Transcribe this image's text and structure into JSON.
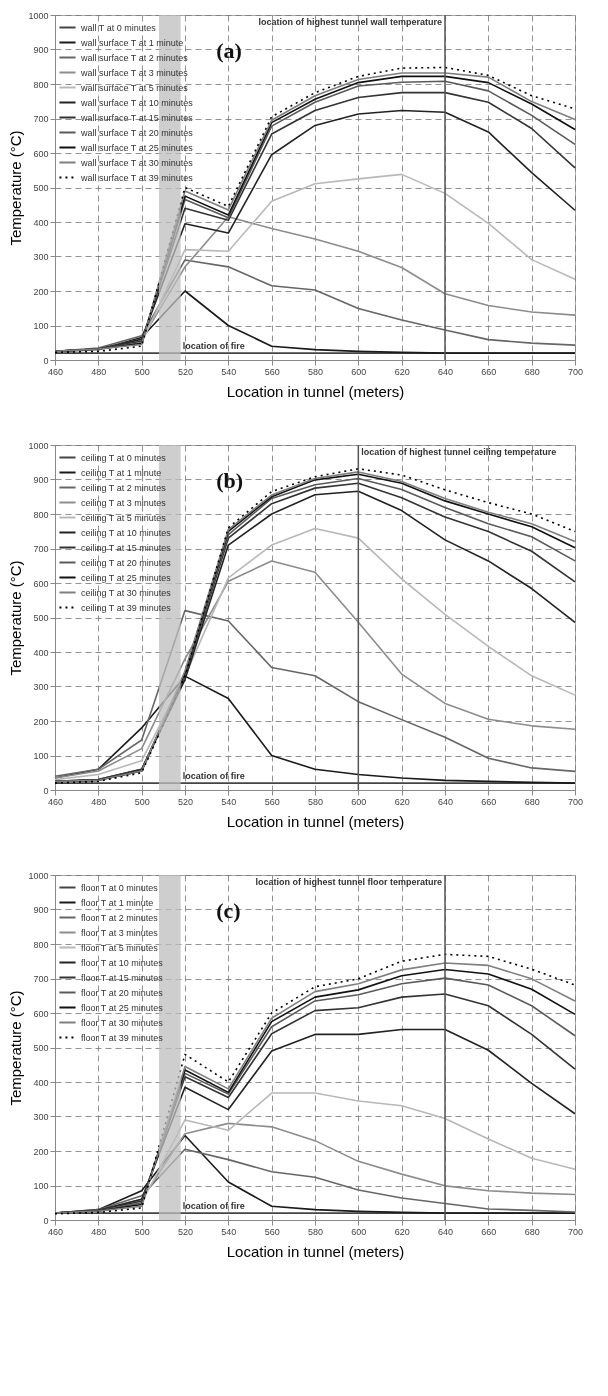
{
  "chart_data": [
    {
      "type": "line",
      "title": "(a)",
      "xlabel": "Location in tunnel (meters)",
      "ylabel": "Temperature (°C)",
      "x": [
        460,
        480,
        500,
        520,
        540,
        560,
        580,
        600,
        620,
        640,
        660,
        680,
        700
      ],
      "xlim": [
        460,
        700
      ],
      "xticks": [
        460,
        480,
        500,
        520,
        540,
        560,
        580,
        600,
        620,
        640,
        660,
        680,
        700
      ],
      "ylim": [
        0,
        1000
      ],
      "yticks": [
        0,
        100,
        200,
        300,
        400,
        500,
        600,
        700,
        800,
        900,
        1000
      ],
      "grid": true,
      "legend": "top left",
      "series": [
        {
          "name": "wall T at 0 minutes",
          "color": "#444444",
          "values": [
            20,
            20,
            20,
            20,
            20,
            20,
            20,
            20,
            20,
            20,
            20,
            20,
            20
          ]
        },
        {
          "name": "wall surface T at 1 minute",
          "color": "#1a1a1a",
          "values": [
            25,
            30,
            65,
            200,
            100,
            40,
            30,
            25,
            22,
            20,
            20,
            20,
            20
          ]
        },
        {
          "name": "wall surface T at 2 minutes",
          "color": "#666666",
          "values": [
            25,
            35,
            70,
            290,
            270,
            215,
            203,
            149,
            116,
            87,
            59,
            49,
            43
          ]
        },
        {
          "name": "wall surface T at 3 minutes",
          "color": "#8c8c8c",
          "values": [
            25,
            32,
            60,
            270,
            415,
            381,
            351,
            315,
            268,
            192,
            158,
            139,
            130
          ]
        },
        {
          "name": "wall surface T at 5 minutes",
          "color": "#b8b8b8",
          "values": [
            25,
            30,
            50,
            320,
            315,
            460,
            511,
            525,
            538,
            483,
            396,
            291,
            234
          ]
        },
        {
          "name": "wall surface T at 10 minutes",
          "color": "#222222",
          "values": [
            25,
            32,
            60,
            395,
            368,
            595,
            680,
            713,
            723,
            718,
            661,
            543,
            434
          ]
        },
        {
          "name": "wall surface T at 15 minutes",
          "color": "#333333",
          "values": [
            25,
            32,
            55,
            440,
            405,
            655,
            723,
            761,
            775,
            775,
            747,
            671,
            557
          ]
        },
        {
          "name": "wall surface T at 20 minutes",
          "color": "#5a5a5a",
          "values": [
            25,
            32,
            50,
            465,
            412,
            678,
            747,
            794,
            805,
            808,
            780,
            709,
            625
          ]
        },
        {
          "name": "wall surface T at 25 minutes",
          "color": "#111111",
          "values": [
            25,
            32,
            48,
            475,
            420,
            688,
            756,
            804,
            822,
            822,
            804,
            742,
            668
          ]
        },
        {
          "name": "wall surface T at 30 minutes",
          "color": "#7f7f7f",
          "values": [
            25,
            32,
            45,
            490,
            435,
            695,
            766,
            813,
            832,
            832,
            820,
            749,
            697
          ]
        },
        {
          "name": "wall surface T at 39 minutes",
          "color": "#000000",
          "line_style": "dotted",
          "values": [
            22,
            25,
            40,
            500,
            445,
            705,
            775,
            822,
            846,
            848,
            825,
            766,
            728
          ]
        }
      ],
      "bands": [
        {
          "axis": "x",
          "from": 508,
          "to": 518,
          "label": "location of fire",
          "color": "#bdbdbd"
        }
      ],
      "ref_lines": [
        {
          "axis": "x",
          "value": 640,
          "label": "location of highest tunnel wall temperature",
          "color": "#555555"
        }
      ]
    },
    {
      "type": "line",
      "title": "(b)",
      "xlabel": "Location in tunnel (meters)",
      "ylabel": "Temperature (°C)",
      "x": [
        460,
        480,
        500,
        520,
        540,
        560,
        580,
        600,
        620,
        640,
        660,
        680,
        700
      ],
      "xlim": [
        460,
        700
      ],
      "xticks": [
        460,
        480,
        500,
        520,
        540,
        560,
        580,
        600,
        620,
        640,
        660,
        680,
        700
      ],
      "ylim": [
        0,
        1000
      ],
      "yticks": [
        0,
        100,
        200,
        300,
        400,
        500,
        600,
        700,
        800,
        900,
        1000
      ],
      "grid": true,
      "legend": "top left",
      "series": [
        {
          "name": "ceiling T at 0 minutes",
          "color": "#444444",
          "values": [
            20,
            20,
            20,
            20,
            20,
            20,
            20,
            20,
            20,
            20,
            20,
            20,
            20
          ]
        },
        {
          "name": "ceiling T at 1 minute",
          "color": "#1a1a1a",
          "values": [
            35,
            60,
            180,
            330,
            265,
            100,
            60,
            45,
            35,
            28,
            25,
            22,
            20
          ]
        },
        {
          "name": "ceiling T at 2 minutes",
          "color": "#666666",
          "values": [
            40,
            60,
            145,
            520,
            490,
            355,
            331,
            256,
            204,
            153,
            92,
            64,
            54
          ]
        },
        {
          "name": "ceiling T at 3 minutes",
          "color": "#8c8c8c",
          "values": [
            35,
            55,
            120,
            380,
            605,
            664,
            631,
            486,
            336,
            251,
            205,
            186,
            176
          ]
        },
        {
          "name": "ceiling T at 5 minutes",
          "color": "#b8b8b8",
          "values": [
            30,
            45,
            85,
            330,
            615,
            710,
            758,
            730,
            612,
            509,
            416,
            331,
            275
          ]
        },
        {
          "name": "ceiling T at 10 minutes",
          "color": "#222222",
          "values": [
            25,
            30,
            60,
            320,
            710,
            800,
            856,
            866,
            810,
            725,
            664,
            584,
            486
          ]
        },
        {
          "name": "ceiling T at 15 minutes",
          "color": "#333333",
          "values": [
            25,
            30,
            60,
            330,
            730,
            830,
            875,
            889,
            847,
            791,
            749,
            692,
            603
          ]
        },
        {
          "name": "ceiling T at 20 minutes",
          "color": "#5a5a5a",
          "values": [
            25,
            28,
            55,
            335,
            740,
            845,
            885,
            903,
            871,
            819,
            772,
            734,
            664
          ]
        },
        {
          "name": "ceiling T at 25 minutes",
          "color": "#111111",
          "values": [
            25,
            28,
            55,
            340,
            750,
            850,
            899,
            915,
            889,
            838,
            800,
            763,
            702
          ]
        },
        {
          "name": "ceiling T at 30 minutes",
          "color": "#7f7f7f",
          "values": [
            25,
            28,
            55,
            345,
            755,
            855,
            903,
            922,
            894,
            845,
            805,
            772,
            720
          ]
        },
        {
          "name": "ceiling T at 39 minutes",
          "color": "#000000",
          "line_style": "dotted",
          "values": [
            20,
            25,
            50,
            330,
            760,
            865,
            908,
            931,
            913,
            870,
            833,
            800,
            749
          ]
        }
      ],
      "bands": [
        {
          "axis": "x",
          "from": 508,
          "to": 518,
          "label": "location of fire",
          "color": "#bdbdbd"
        }
      ],
      "ref_lines": [
        {
          "axis": "x",
          "value": 600,
          "label": "location of highest tunnel ceiling temperature",
          "color": "#555555"
        }
      ]
    },
    {
      "type": "line",
      "title": "(c)",
      "xlabel": "Location in tunnel (meters)",
      "ylabel": "Temperature (°C)",
      "x": [
        460,
        480,
        500,
        520,
        540,
        560,
        580,
        600,
        620,
        640,
        660,
        680,
        700
      ],
      "xlim": [
        460,
        700
      ],
      "xticks": [
        460,
        480,
        500,
        520,
        540,
        560,
        580,
        600,
        620,
        640,
        660,
        680,
        700
      ],
      "ylim": [
        0,
        1000
      ],
      "yticks": [
        0,
        100,
        200,
        300,
        400,
        500,
        600,
        700,
        800,
        900,
        1000
      ],
      "grid": true,
      "legend": "top left",
      "series": [
        {
          "name": "floor T at 0 minutes",
          "color": "#444444",
          "values": [
            20,
            20,
            20,
            20,
            20,
            20,
            20,
            20,
            20,
            20,
            20,
            20,
            20
          ]
        },
        {
          "name": "floor T at 1 minute",
          "color": "#1a1a1a",
          "values": [
            20,
            30,
            85,
            245,
            110,
            40,
            30,
            25,
            22,
            20,
            20,
            20,
            20
          ]
        },
        {
          "name": "floor T at 2 minutes",
          "color": "#666666",
          "values": [
            20,
            30,
            70,
            205,
            175,
            140,
            124,
            87,
            64,
            48,
            32,
            28,
            23
          ]
        },
        {
          "name": "floor T at 3 minutes",
          "color": "#8c8c8c",
          "values": [
            20,
            28,
            60,
            250,
            280,
            270,
            230,
            170,
            133,
            99,
            85,
            78,
            74
          ]
        },
        {
          "name": "floor T at 5 minutes",
          "color": "#b8b8b8",
          "values": [
            20,
            25,
            50,
            290,
            260,
            368,
            368,
            345,
            331,
            294,
            235,
            179,
            147
          ]
        },
        {
          "name": "floor T at 10 minutes",
          "color": "#222222",
          "values": [
            20,
            28,
            60,
            385,
            320,
            490,
            538,
            538,
            552,
            552,
            492,
            396,
            308
          ]
        },
        {
          "name": "floor T at 15 minutes",
          "color": "#333333",
          "values": [
            20,
            28,
            55,
            415,
            355,
            540,
            607,
            615,
            646,
            655,
            621,
            538,
            437
          ]
        },
        {
          "name": "floor T at 20 minutes",
          "color": "#5a5a5a",
          "values": [
            20,
            26,
            50,
            425,
            365,
            560,
            635,
            653,
            685,
            701,
            681,
            621,
            534
          ]
        },
        {
          "name": "floor T at 25 minutes",
          "color": "#111111",
          "values": [
            20,
            26,
            45,
            435,
            370,
            575,
            646,
            667,
            708,
            726,
            713,
            669,
            596
          ]
        },
        {
          "name": "floor T at 30 minutes",
          "color": "#7f7f7f",
          "values": [
            20,
            26,
            40,
            445,
            380,
            585,
            662,
            685,
            725,
            745,
            738,
            699,
            635
          ]
        },
        {
          "name": "floor T at 39 minutes",
          "color": "#000000",
          "line_style": "dotted",
          "values": [
            18,
            22,
            35,
            480,
            400,
            600,
            676,
            699,
            750,
            770,
            764,
            727,
            681
          ]
        }
      ],
      "bands": [
        {
          "axis": "x",
          "from": 508,
          "to": 518,
          "label": "location of fire",
          "color": "#bdbdbd"
        }
      ],
      "ref_lines": [
        {
          "axis": "x",
          "value": 640,
          "label": "location of highest tunnel floor temperature",
          "color": "#555555"
        }
      ]
    }
  ]
}
